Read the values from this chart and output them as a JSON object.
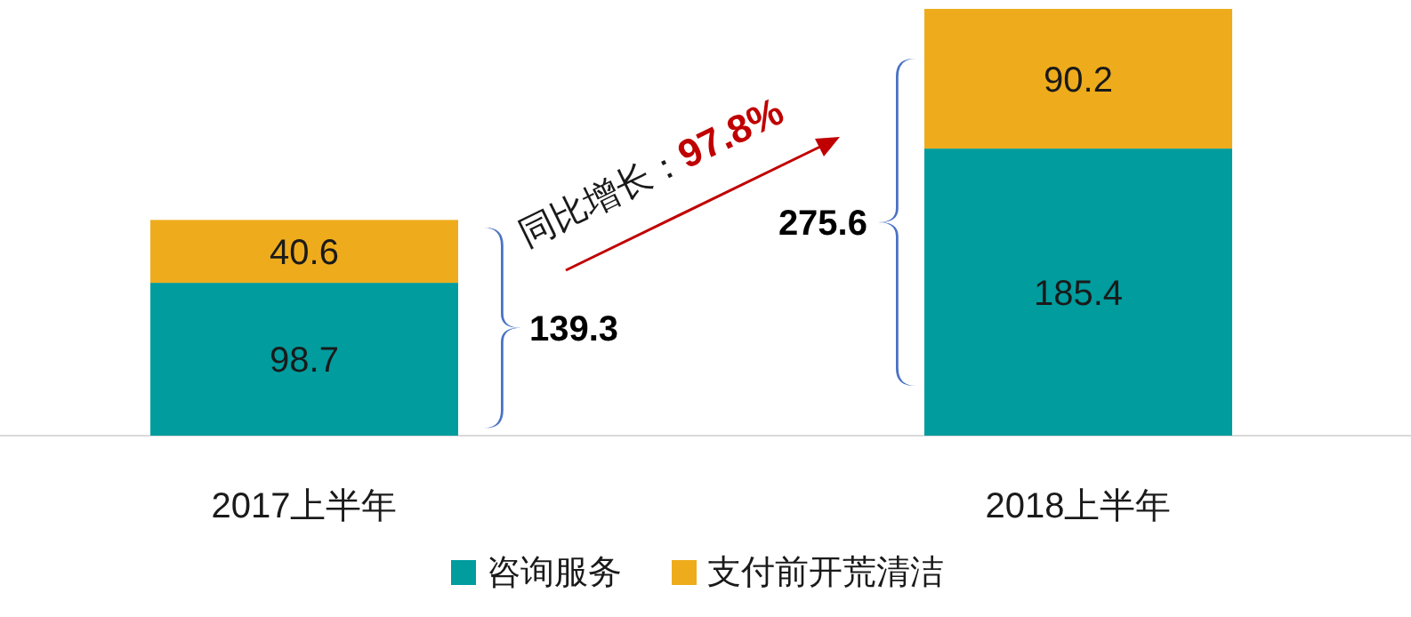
{
  "chart_data": {
    "type": "bar",
    "stacked": true,
    "categories": [
      "2017上半年",
      "2018上半年"
    ],
    "series": [
      {
        "name": "咨询服务",
        "color": "#009c9e",
        "values": [
          98.7,
          185.4
        ]
      },
      {
        "name": "支付前开荒清洁",
        "color": "#eeac1c",
        "values": [
          40.6,
          90.2
        ]
      }
    ],
    "data_labels": true,
    "totals": [
      "139.3",
      "275.6"
    ],
    "annotations": [
      "同比增长：",
      "97.8%"
    ],
    "legend": "bottom"
  }
}
